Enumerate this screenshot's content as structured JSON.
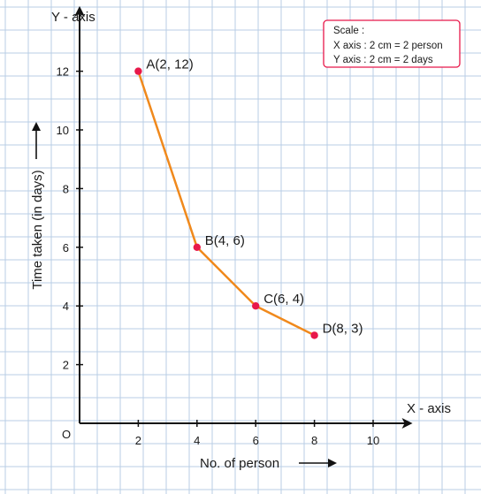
{
  "chart_data": {
    "type": "line",
    "x_axis_name": "X - axis",
    "y_axis_name": "Y - axis",
    "origin_label": "O",
    "xlabel": "No. of person",
    "ylabel": "Time taken (in days)",
    "xlim": [
      0,
      10.8
    ],
    "ylim": [
      0,
      13.8
    ],
    "x_ticks": [
      2,
      4,
      6,
      8,
      10
    ],
    "y_ticks": [
      2,
      4,
      6,
      8,
      10,
      12
    ],
    "series": [
      {
        "points": [
          {
            "x": 2,
            "y": 12,
            "label": "A(2, 12)"
          },
          {
            "x": 4,
            "y": 6,
            "label": "B(4, 6)"
          },
          {
            "x": 6,
            "y": 4,
            "label": "C(6, 4)"
          },
          {
            "x": 8,
            "y": 3,
            "label": "D(8, 3)"
          }
        ]
      }
    ],
    "scale_box": {
      "title": "Scale :",
      "lines": [
        "X axis : 2 cm = 2 person",
        "Y axis : 2 cm = 2 days"
      ]
    },
    "grid": true,
    "colors": {
      "line": "#f0891c",
      "point": "#e8184a",
      "grid": "#b9cde5",
      "axis": "#111111",
      "scale_box_border": "#e8184a"
    }
  }
}
